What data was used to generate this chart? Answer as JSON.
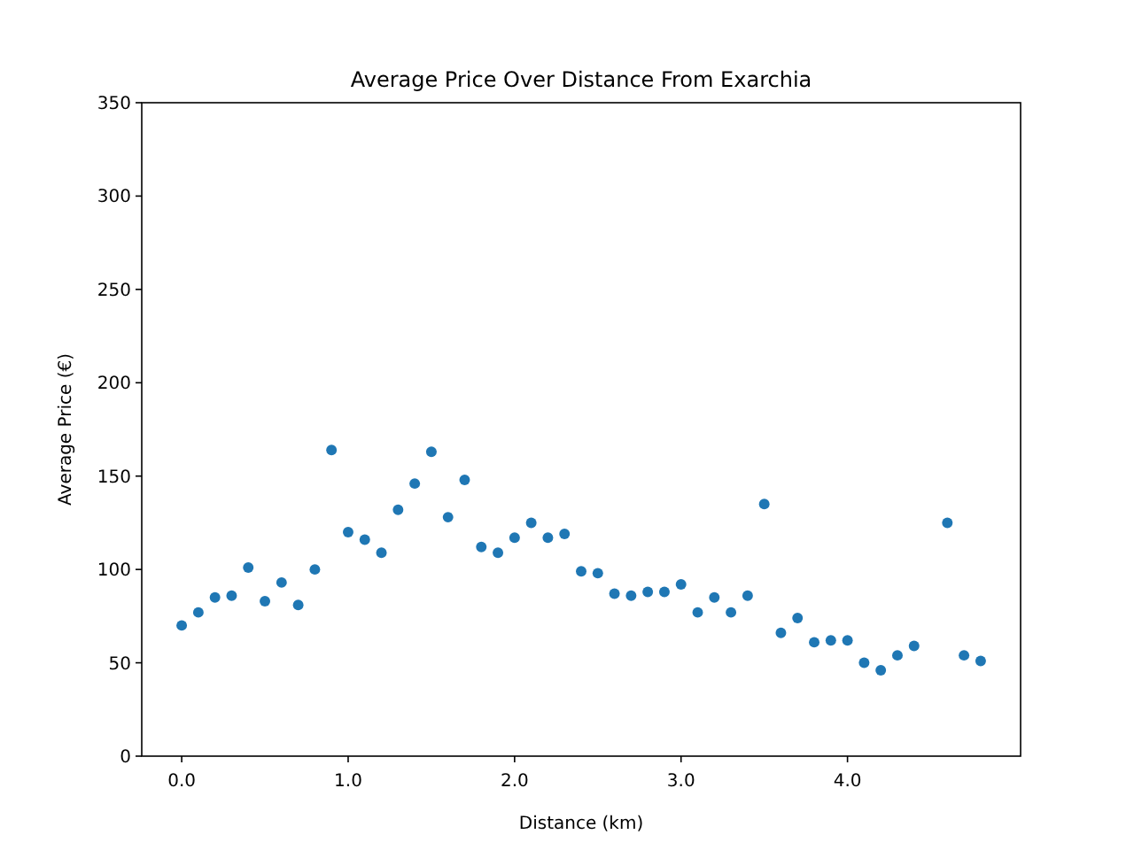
{
  "chart_data": {
    "type": "scatter",
    "title": "Average Price Over Distance From Exarchia",
    "xlabel": "Distance (km)",
    "ylabel": "Average Price (€)",
    "x": [
      0,
      0.1,
      0.2,
      0.3,
      0.4,
      0.5,
      0.6,
      0.7,
      0.8,
      0.9,
      1.0,
      1.1,
      1.2,
      1.3,
      1.4,
      1.5,
      1.6,
      1.7,
      1.8,
      1.9,
      2.0,
      2.1,
      2.2,
      2.3,
      2.4,
      2.5,
      2.6,
      2.7,
      2.8,
      2.9,
      3.0,
      3.1,
      3.2,
      3.3,
      3.4,
      3.5,
      3.6,
      3.7,
      3.8,
      3.9,
      4.0,
      4.1,
      4.2,
      4.3,
      4.4,
      4.6,
      4.7,
      4.8
    ],
    "values": [
      70,
      77,
      85,
      86,
      101,
      83,
      93,
      81,
      100,
      164,
      120,
      116,
      109,
      132,
      146,
      163,
      128,
      148,
      112,
      109,
      117,
      125,
      117,
      119,
      99,
      98,
      87,
      86,
      88,
      88,
      92,
      77,
      85,
      77,
      86,
      135,
      66,
      74,
      61,
      62,
      62,
      50,
      46,
      54,
      59,
      125,
      54,
      51
    ],
    "color": "#1f77b4",
    "marker": "circle",
    "xlim": [
      -0.24,
      5.04
    ],
    "xticks": [
      {
        "value": 0,
        "label": "0.0"
      },
      {
        "value": 1,
        "label": "1.0"
      },
      {
        "value": 2,
        "label": "2.0"
      },
      {
        "value": 3,
        "label": "3.0"
      },
      {
        "value": 4,
        "label": "4.0"
      }
    ],
    "ylim": [
      0,
      350
    ],
    "yticks": [
      0,
      50,
      100,
      150,
      200,
      250,
      300,
      350
    ],
    "grid": false
  }
}
